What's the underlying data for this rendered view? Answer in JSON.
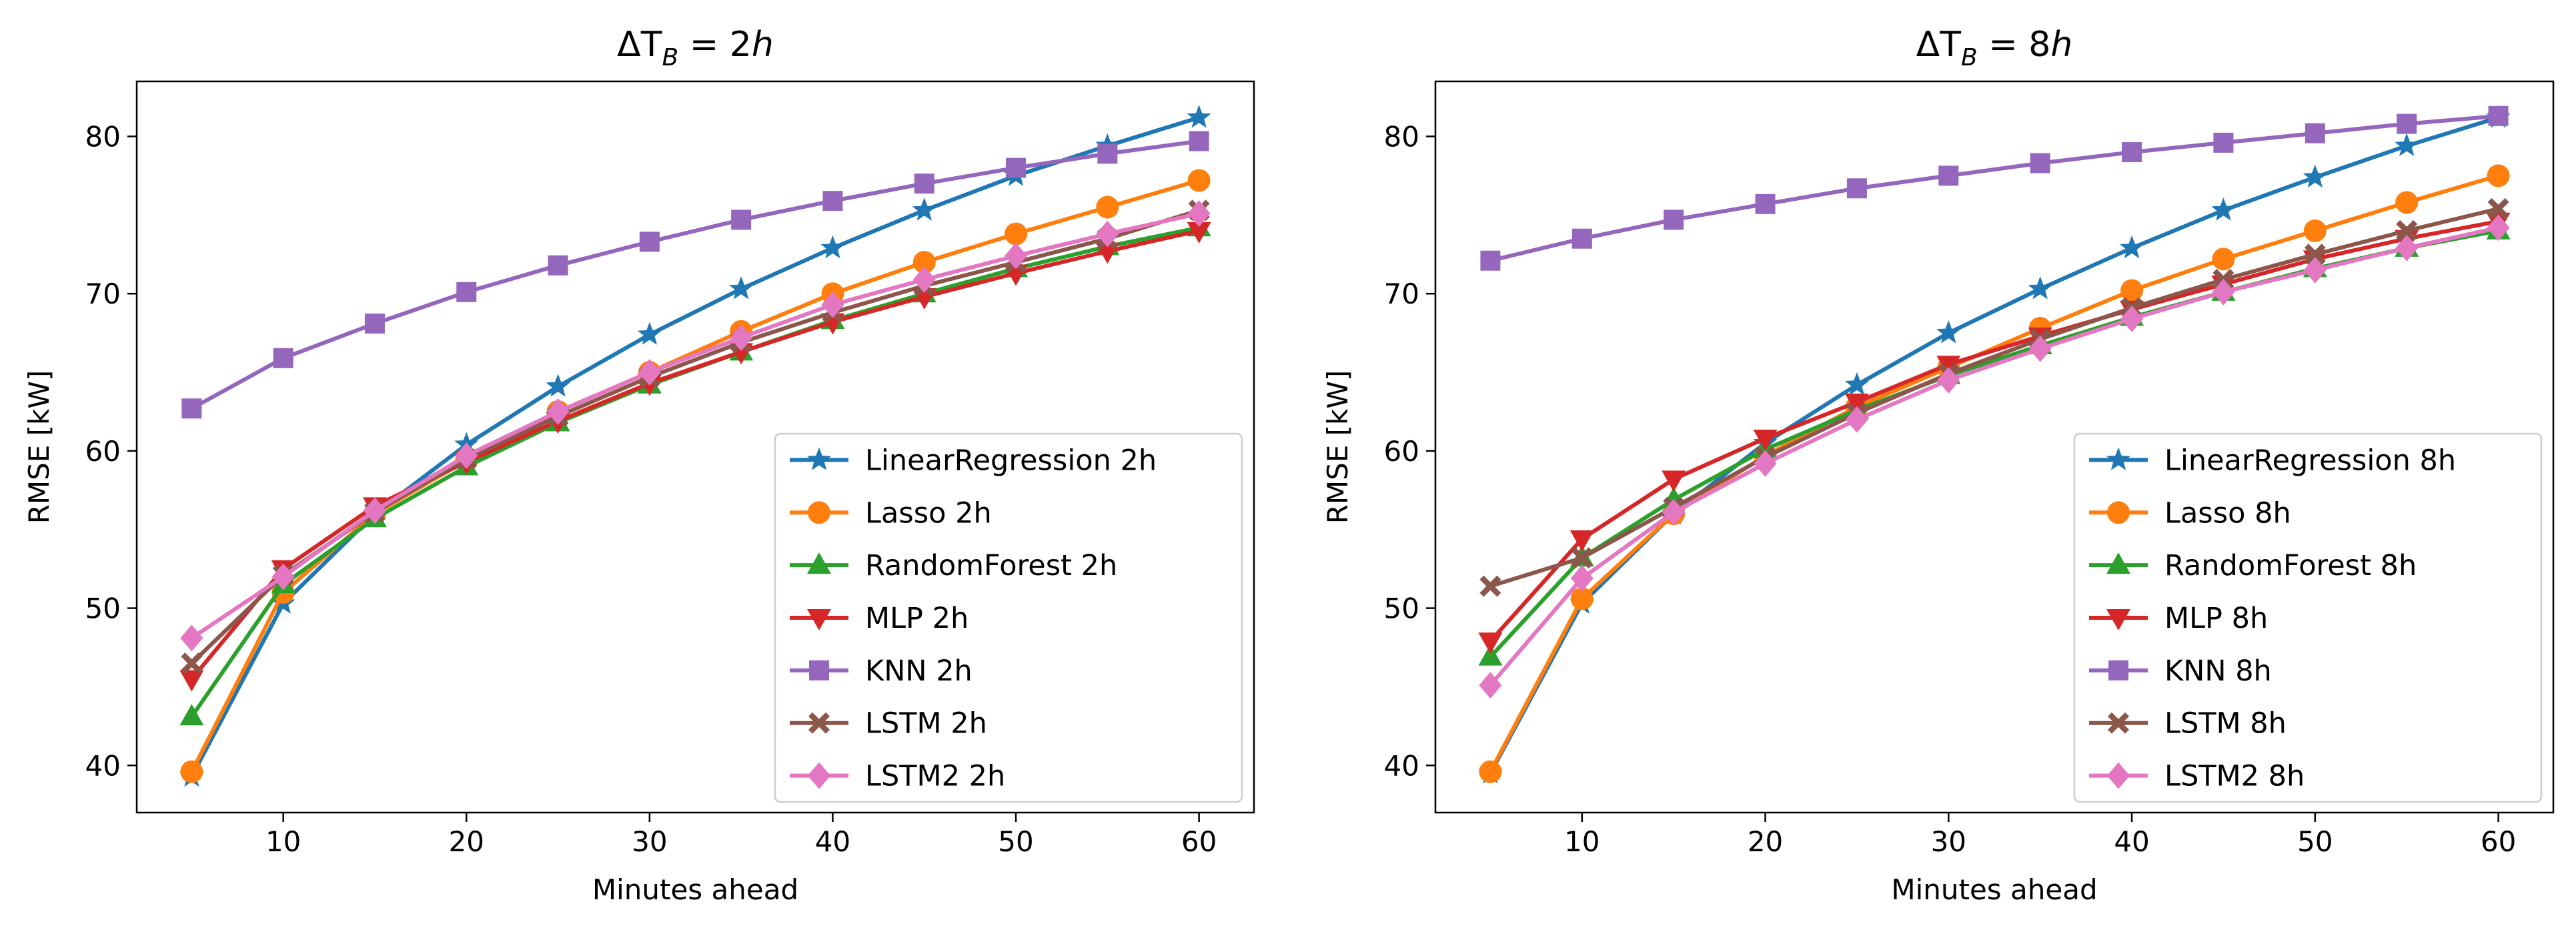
{
  "chart_data": [
    {
      "type": "line",
      "title": "ΔT_B = 2h",
      "title_main": "ΔT",
      "title_sub": "B",
      "title_rest": " = 2",
      "title_unit": "h",
      "xlabel": "Minutes ahead",
      "ylabel": "RMSE [kW]",
      "xlim": [
        2,
        63
      ],
      "ylim": [
        37,
        83.5
      ],
      "xticks": [
        10,
        20,
        30,
        40,
        50,
        60
      ],
      "yticks": [
        40,
        50,
        60,
        70,
        80
      ],
      "legend_position": "lower right",
      "x": [
        5,
        10,
        15,
        20,
        25,
        30,
        35,
        40,
        45,
        50,
        55,
        60
      ],
      "series": [
        {
          "name": "LinearRegression 2h",
          "color": "#1f77b4",
          "marker": "star",
          "values": [
            39.3,
            50.3,
            56.0,
            60.4,
            64.1,
            67.4,
            70.3,
            72.9,
            75.3,
            77.5,
            79.4,
            81.2
          ]
        },
        {
          "name": "Lasso 2h",
          "color": "#ff7f0e",
          "marker": "circle",
          "values": [
            39.6,
            51.0,
            56.0,
            59.4,
            62.5,
            65.0,
            67.6,
            70.0,
            72.0,
            73.8,
            75.5,
            77.2
          ]
        },
        {
          "name": "RandomForest 2h",
          "color": "#2ca02c",
          "marker": "triangle-up",
          "values": [
            43.1,
            51.5,
            55.7,
            59.0,
            61.8,
            64.2,
            66.3,
            68.3,
            70.0,
            71.6,
            73.0,
            74.2
          ]
        },
        {
          "name": "MLP 2h",
          "color": "#d62728",
          "marker": "triangle-down",
          "values": [
            45.5,
            52.5,
            56.5,
            59.3,
            61.9,
            64.3,
            66.3,
            68.2,
            69.8,
            71.3,
            72.7,
            74.0
          ]
        },
        {
          "name": "KNN 2h",
          "color": "#9467bd",
          "marker": "square",
          "values": [
            62.7,
            65.9,
            68.1,
            70.1,
            71.8,
            73.3,
            74.7,
            75.9,
            77.0,
            78.0,
            78.9,
            79.7
          ]
        },
        {
          "name": "LSTM 2h",
          "color": "#8c564b",
          "marker": "x-filled",
          "values": [
            46.5,
            52.1,
            56.1,
            59.5,
            62.2,
            64.7,
            66.9,
            68.8,
            70.5,
            72.0,
            73.5,
            75.3
          ]
        },
        {
          "name": "LSTM2 2h",
          "color": "#e377c2",
          "marker": "diamond",
          "values": [
            48.1,
            52.0,
            56.2,
            59.7,
            62.5,
            65.0,
            67.2,
            69.3,
            70.9,
            72.4,
            73.8,
            75.1
          ]
        }
      ]
    },
    {
      "type": "line",
      "title": "ΔT_B = 8h",
      "title_main": "ΔT",
      "title_sub": "B",
      "title_rest": " = 8",
      "title_unit": "h",
      "xlabel": "Minutes ahead",
      "ylabel": "RMSE [kW]",
      "xlim": [
        2,
        63
      ],
      "ylim": [
        37,
        83.5
      ],
      "xticks": [
        10,
        20,
        30,
        40,
        50,
        60
      ],
      "yticks": [
        40,
        50,
        60,
        70,
        80
      ],
      "legend_position": "lower right",
      "x": [
        5,
        10,
        15,
        20,
        25,
        30,
        35,
        40,
        45,
        50,
        55,
        60
      ],
      "series": [
        {
          "name": "LinearRegression 8h",
          "color": "#1f77b4",
          "marker": "star",
          "values": [
            39.5,
            50.3,
            56.0,
            60.5,
            64.2,
            67.5,
            70.3,
            72.9,
            75.3,
            77.4,
            79.4,
            81.2
          ]
        },
        {
          "name": "Lasso 8h",
          "color": "#ff7f0e",
          "marker": "circle",
          "values": [
            39.6,
            50.6,
            56.0,
            59.7,
            62.8,
            65.3,
            67.8,
            70.2,
            72.2,
            74.0,
            75.8,
            77.5
          ]
        },
        {
          "name": "RandomForest 8h",
          "color": "#2ca02c",
          "marker": "triangle-up",
          "values": [
            46.9,
            53.2,
            56.9,
            60.1,
            62.6,
            64.8,
            66.7,
            68.5,
            70.1,
            71.6,
            72.9,
            74.0
          ]
        },
        {
          "name": "MLP 8h",
          "color": "#d62728",
          "marker": "triangle-down",
          "values": [
            47.9,
            54.4,
            58.2,
            60.8,
            63.1,
            65.5,
            67.3,
            69.0,
            70.6,
            72.2,
            73.5,
            74.6
          ]
        },
        {
          "name": "KNN 8h",
          "color": "#9467bd",
          "marker": "square",
          "values": [
            72.1,
            73.5,
            74.7,
            75.7,
            76.7,
            77.5,
            78.3,
            79.0,
            79.6,
            80.2,
            80.8,
            81.3
          ]
        },
        {
          "name": "LSTM 8h",
          "color": "#8c564b",
          "marker": "x-filled",
          "values": [
            51.4,
            53.2,
            56.4,
            59.6,
            62.4,
            64.9,
            67.1,
            69.1,
            70.9,
            72.5,
            74.0,
            75.4
          ]
        },
        {
          "name": "LSTM2 8h",
          "color": "#e377c2",
          "marker": "diamond",
          "values": [
            45.1,
            51.9,
            56.1,
            59.2,
            62.0,
            64.5,
            66.5,
            68.4,
            70.1,
            71.5,
            72.9,
            74.2
          ]
        }
      ]
    }
  ]
}
